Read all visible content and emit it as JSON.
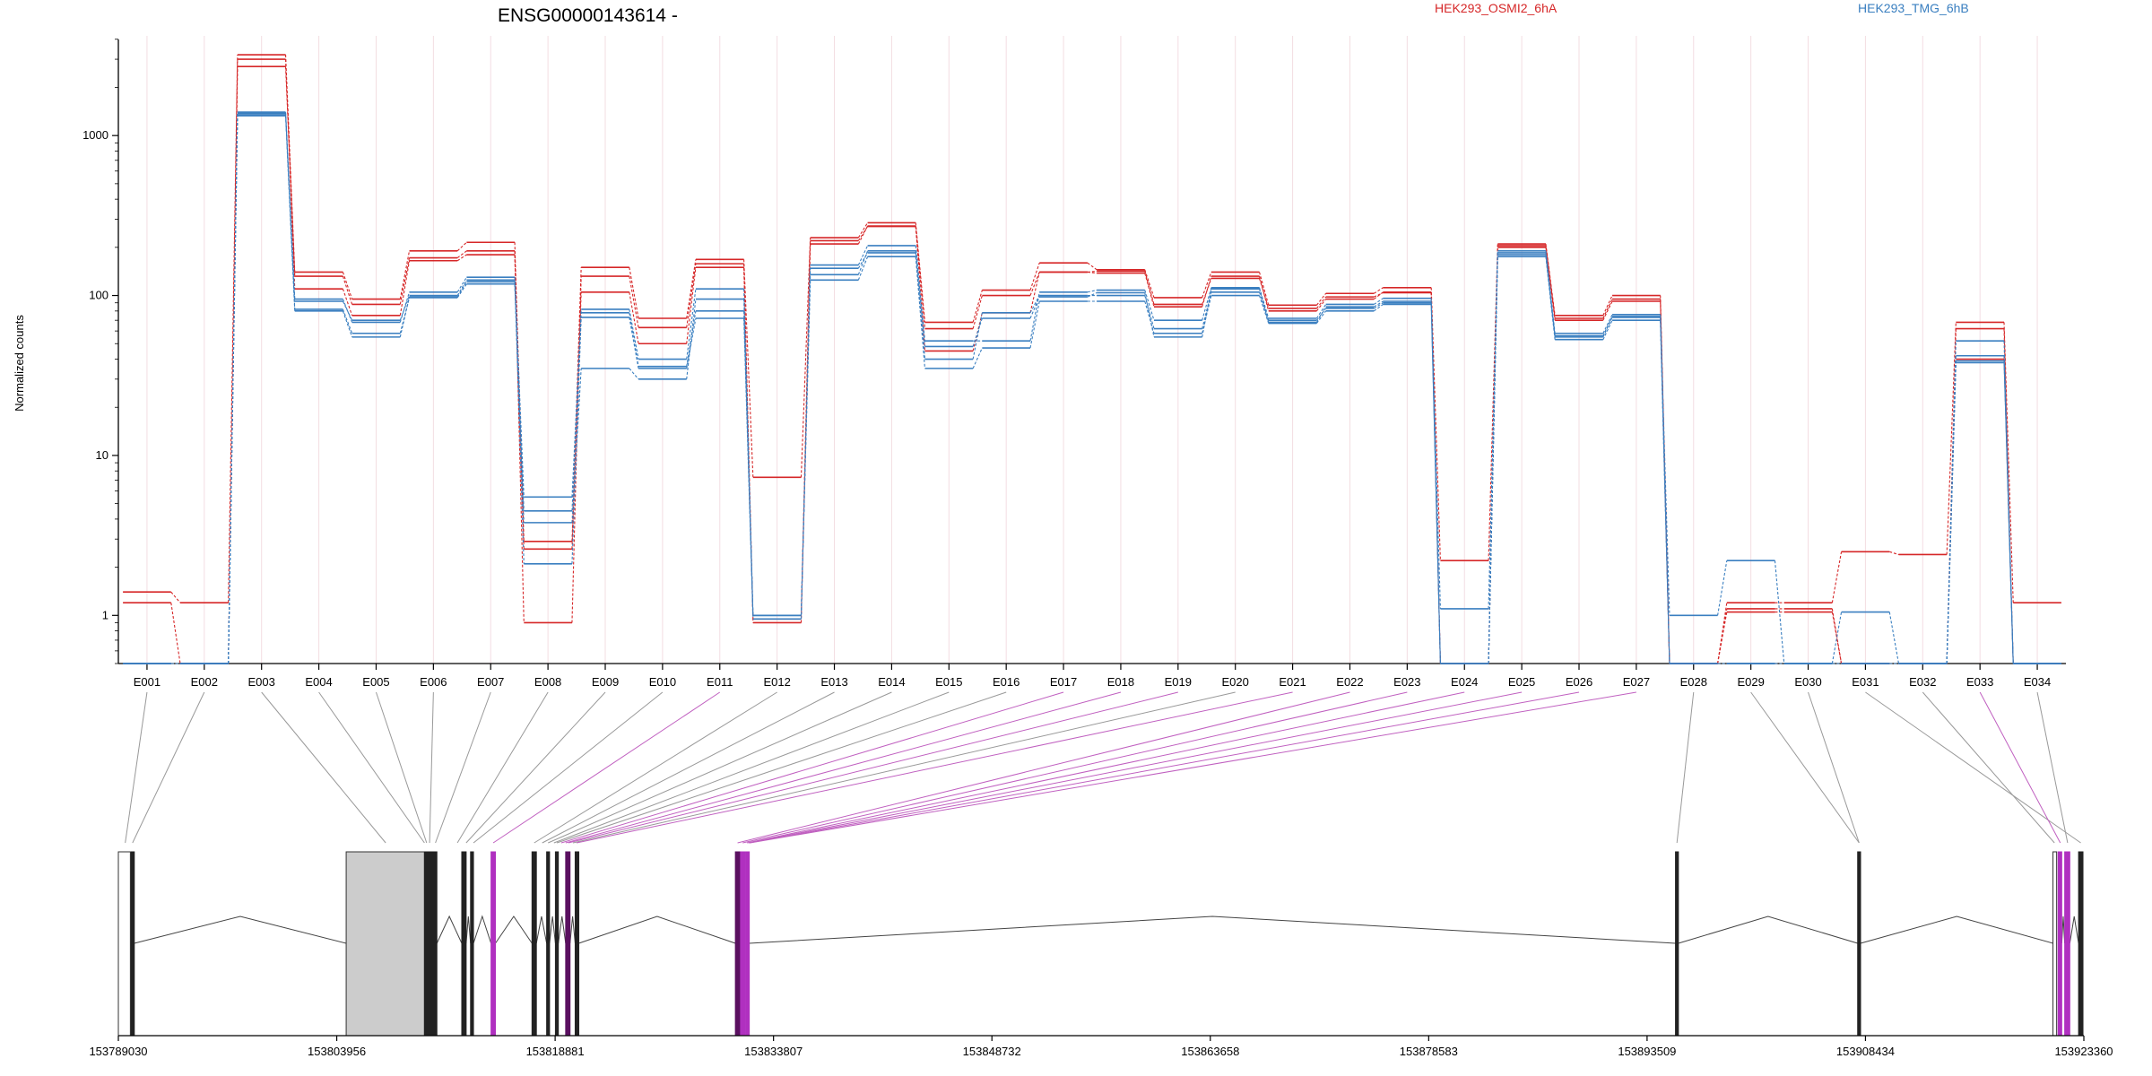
{
  "chart_data": {
    "type": "line",
    "title": "ENSG00000143614 -",
    "ylabel": "Normalized counts",
    "yscale": "log",
    "ylim": [
      0.5,
      4200
    ],
    "yticks": [
      1,
      10,
      100,
      1000
    ],
    "ytick_labels": [
      "1",
      "10",
      "100",
      "1000"
    ],
    "categories": [
      "E001",
      "E002",
      "E003",
      "E004",
      "E005",
      "E006",
      "E007",
      "E008",
      "E009",
      "E010",
      "E011",
      "E012",
      "E013",
      "E014",
      "E015",
      "E016",
      "E017",
      "E018",
      "E019",
      "E020",
      "E021",
      "E022",
      "E023",
      "E024",
      "E025",
      "E026",
      "E027",
      "E028",
      "E029",
      "E030",
      "E031",
      "E032",
      "E033",
      "E034"
    ],
    "legend": [
      {
        "label": "HEK293_OSMI2_6hA",
        "color": "#d62728"
      },
      {
        "label": "HEK293_TMG_6hB",
        "color": "#3a7fc0"
      }
    ],
    "series": [
      {
        "group": "HEK293_OSMI2_6hA",
        "color": "#d62728",
        "values": [
          1.4,
          1.2,
          3200,
          140,
          95,
          190,
          215,
          2.9,
          150,
          72,
          168,
          7.3,
          230,
          285,
          68,
          108,
          160,
          145,
          97,
          140,
          87,
          103,
          112,
          2.2,
          210,
          75,
          100,
          0.5,
          1.2,
          1.2,
          2.5,
          2.4,
          68,
          1.2
        ]
      },
      {
        "group": "HEK293_OSMI2_6hA",
        "color": "#d62728",
        "values": [
          1.2,
          0.5,
          2700,
          132,
          88,
          172,
          190,
          0.9,
          132,
          63,
          158,
          0.9,
          210,
          272,
          62,
          100,
          140,
          142,
          88,
          128,
          83,
          98,
          104,
          0.5,
          205,
          72,
          95,
          0.5,
          1.1,
          1.1,
          0.5,
          0.5,
          62,
          0.5
        ]
      },
      {
        "group": "HEK293_OSMI2_6hA",
        "color": "#d62728",
        "values": [
          0.5,
          0.5,
          3000,
          110,
          75,
          165,
          180,
          2.6,
          105,
          50,
          150,
          0.95,
          220,
          270,
          45,
          78,
          140,
          138,
          85,
          132,
          80,
          95,
          105,
          0.5,
          200,
          70,
          92,
          0.5,
          1.05,
          1.05,
          0.5,
          0.5,
          40,
          0.5
        ]
      },
      {
        "group": "HEK293_TMG_6hB",
        "color": "#3a7fc0",
        "values": [
          0.5,
          0.5,
          1400,
          95,
          68,
          105,
          130,
          5.5,
          82,
          40,
          110,
          1.0,
          155,
          205,
          52,
          52,
          105,
          108,
          70,
          112,
          72,
          88,
          96,
          1.1,
          190,
          58,
          76,
          1.0,
          2.2,
          0.5,
          1.05,
          0.5,
          52,
          0.5
        ]
      },
      {
        "group": "HEK293_TMG_6hB",
        "color": "#3a7fc0",
        "values": [
          0.5,
          0.5,
          1350,
          82,
          58,
          97,
          118,
          3.8,
          35,
          30,
          95,
          1.0,
          125,
          175,
          35,
          47,
          92,
          92,
          58,
          100,
          67,
          80,
          88,
          0.5,
          175,
          53,
          70,
          0.5,
          0.5,
          0.5,
          0.5,
          0.5,
          38,
          0.5
        ]
      },
      {
        "group": "HEK293_TMG_6hB",
        "color": "#3a7fc0",
        "values": [
          0.5,
          0.5,
          1380,
          92,
          70,
          100,
          125,
          2.1,
          73,
          35,
          72,
          0.95,
          148,
          185,
          40,
          78,
          100,
          100,
          62,
          105,
          70,
          83,
          90,
          0.5,
          180,
          55,
          73,
          0.5,
          0.5,
          0.5,
          0.5,
          0.5,
          42,
          0.5
        ]
      },
      {
        "group": "HEK293_TMG_6hB",
        "color": "#3a7fc0",
        "values": [
          0.5,
          0.5,
          1330,
          80,
          55,
          98,
          122,
          4.5,
          78,
          36,
          80,
          1.0,
          135,
          190,
          48,
          72,
          98,
          104,
          55,
          110,
          68,
          85,
          92,
          0.5,
          185,
          56,
          74,
          0.5,
          0.5,
          0.5,
          0.5,
          0.5,
          39,
          0.5
        ]
      }
    ],
    "gene_model": {
      "genomic_axis": {
        "range": [
          153789030,
          153923360
        ],
        "tick_labels": [
          "153789030",
          "153803956",
          "153818881",
          "153833807",
          "153848732",
          "153863658",
          "153878583",
          "153893509",
          "153908434",
          "153923360"
        ]
      },
      "exons": [
        {
          "id": "E001",
          "start": 153789030,
          "end": 153789850,
          "kind": "outline"
        },
        {
          "id": "E002",
          "start": 153789900,
          "end": 153790120,
          "kind": "black"
        },
        {
          "id": "E003",
          "start": 153804600,
          "end": 153809950,
          "kind": "gray-box"
        },
        {
          "id": "E004",
          "start": 153809950,
          "end": 153810300,
          "kind": "black"
        },
        {
          "id": "E005",
          "start": 153810350,
          "end": 153810550,
          "kind": "black"
        },
        {
          "id": "E006",
          "start": 153810600,
          "end": 153810800,
          "kind": "black"
        },
        {
          "id": "E007",
          "start": 153812500,
          "end": 153812800,
          "kind": "black"
        },
        {
          "id": "E008",
          "start": 153813100,
          "end": 153813300,
          "kind": "black"
        },
        {
          "id": "E009",
          "start": 153814500,
          "end": 153814800,
          "kind": "magenta"
        },
        {
          "id": "E010",
          "start": 153817300,
          "end": 153817600,
          "kind": "black"
        },
        {
          "id": "E011",
          "start": 153818300,
          "end": 153818500,
          "kind": "black"
        },
        {
          "id": "E012",
          "start": 153818900,
          "end": 153819100,
          "kind": "black"
        },
        {
          "id": "E013",
          "start": 153819600,
          "end": 153819900,
          "kind": "purple"
        },
        {
          "id": "E014",
          "start": 153820250,
          "end": 153820500,
          "kind": "black"
        },
        {
          "id": "E015",
          "start": 153831200,
          "end": 153831500,
          "kind": "purple"
        },
        {
          "id": "E016",
          "start": 153831550,
          "end": 153831850,
          "kind": "magenta"
        },
        {
          "id": "E017",
          "start": 153831900,
          "end": 153832150,
          "kind": "magenta"
        },
        {
          "id": "E018",
          "start": 153895450,
          "end": 153895650,
          "kind": "black"
        },
        {
          "id": "E019",
          "start": 153907900,
          "end": 153908100,
          "kind": "black"
        },
        {
          "id": "E020",
          "start": 153923000,
          "end": 153923300,
          "kind": "black"
        },
        {
          "id": "E021",
          "start": 153921250,
          "end": 153921500,
          "kind": "outline"
        },
        {
          "id": "E022",
          "start": 153921600,
          "end": 153921850,
          "kind": "magenta"
        },
        {
          "id": "E023",
          "start": 153922050,
          "end": 153922400,
          "kind": "magenta"
        }
      ],
      "connections": [
        {
          "exon": "E001",
          "target": 153789500,
          "color": "#999999"
        },
        {
          "exon": "E002",
          "target": 153790000,
          "color": "#999999"
        },
        {
          "exon": "E003",
          "target": 153807300,
          "color": "#999999"
        },
        {
          "exon": "E004",
          "target": 153809950,
          "color": "#999999"
        },
        {
          "exon": "E005",
          "target": 153810100,
          "color": "#999999"
        },
        {
          "exon": "E006",
          "target": 153810300,
          "color": "#999999"
        },
        {
          "exon": "E007",
          "target": 153810700,
          "color": "#999999"
        },
        {
          "exon": "E008",
          "target": 153812200,
          "color": "#999999"
        },
        {
          "exon": "E009",
          "target": 153812800,
          "color": "#999999"
        },
        {
          "exon": "E010",
          "target": 153813300,
          "color": "#999999"
        },
        {
          "exon": "E011",
          "target": 153814650,
          "color": "#c060c0"
        },
        {
          "exon": "E012",
          "target": 153817450,
          "color": "#999999"
        },
        {
          "exon": "E013",
          "target": 153818000,
          "color": "#999999"
        },
        {
          "exon": "E014",
          "target": 153818400,
          "color": "#999999"
        },
        {
          "exon": "E015",
          "target": 153818800,
          "color": "#999999"
        },
        {
          "exon": "E016",
          "target": 153819000,
          "color": "#999999"
        },
        {
          "exon": "E017",
          "target": 153819300,
          "color": "#c060c0"
        },
        {
          "exon": "E018",
          "target": 153819600,
          "color": "#c060c0"
        },
        {
          "exon": "E019",
          "target": 153819800,
          "color": "#c060c0"
        },
        {
          "exon": "E020",
          "target": 153820100,
          "color": "#999999"
        },
        {
          "exon": "E021",
          "target": 153820350,
          "color": "#c060c0"
        },
        {
          "exon": "E022",
          "target": 153831350,
          "color": "#c060c0"
        },
        {
          "exon": "E023",
          "target": 153831700,
          "color": "#c060c0"
        },
        {
          "exon": "E024",
          "target": 153832000,
          "color": "#c060c0"
        },
        {
          "exon": "E025",
          "target": 153832100,
          "color": "#c060c0"
        },
        {
          "exon": "E026",
          "target": 153832150,
          "color": "#c060c0"
        },
        {
          "exon": "E027",
          "target": 153832200,
          "color": "#c060c0"
        },
        {
          "exon": "E028",
          "target": 153895550,
          "color": "#999999"
        },
        {
          "exon": "E029",
          "target": 153908000,
          "color": "#999999"
        },
        {
          "exon": "E030",
          "target": 153908000,
          "color": "#999999"
        },
        {
          "exon": "E031",
          "target": 153923150,
          "color": "#999999"
        },
        {
          "exon": "E032",
          "target": 153921350,
          "color": "#999999"
        },
        {
          "exon": "E033",
          "target": 153921750,
          "color": "#c060c0"
        },
        {
          "exon": "E034",
          "target": 153922250,
          "color": "#999999"
        }
      ]
    }
  }
}
